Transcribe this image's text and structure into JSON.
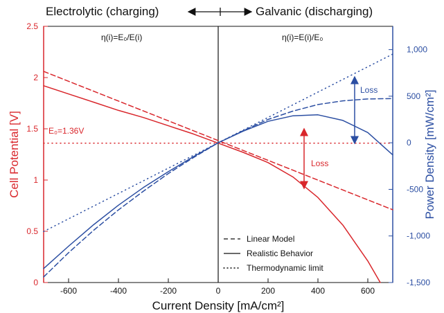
{
  "header": {
    "left_label": "Electrolytic (charging)",
    "right_label": "Galvanic (discharging)"
  },
  "annotations": {
    "eta_left": "η(i)=E₀/E(i)",
    "eta_right": "η(i)=E(i)/E₀",
    "e0_label": "E₀=1.36V",
    "loss_power": "Loss",
    "loss_potential": "Loss"
  },
  "colors": {
    "potential": "#d9262b",
    "power": "#2b4ea2",
    "axis": "#111111"
  },
  "chart_data": {
    "type": "line",
    "xlabel": "Current Density [mA/cm²]",
    "ylabel": "Cell Potential [V]",
    "y2label": "Power Density [mW/cm²]",
    "xlim": [
      -700,
      700
    ],
    "ylim": [
      0,
      2.5
    ],
    "y2lim": [
      -1500,
      1250
    ],
    "xticks": [
      -600,
      -400,
      -200,
      0,
      200,
      400,
      600
    ],
    "yticks": [
      0,
      0.5,
      1,
      1.5,
      2,
      2.5
    ],
    "y2ticks": [
      -1500,
      -1000,
      -500,
      0,
      500,
      1000
    ],
    "xtick_labels": [
      "-600",
      "-400",
      "-200",
      "0",
      "200",
      "400",
      "600"
    ],
    "ytick_labels": [
      "0",
      "0.5",
      "1",
      "1.5",
      "2",
      "2.5"
    ],
    "y2tick_labels": [
      "-1,500",
      "-1,000",
      "-500",
      "0",
      "500",
      "1,000"
    ],
    "legend": {
      "placement": "bottom-right",
      "entries": [
        {
          "label": "Linear Model",
          "style": "dashed"
        },
        {
          "label": "Realistic Behavior",
          "style": "solid"
        },
        {
          "label": "Thermodynamic limit",
          "style": "dotted"
        }
      ]
    },
    "series": [
      {
        "axis": "left",
        "style": "dashed",
        "x": [
          -700,
          700
        ],
        "y": [
          2.06,
          0.71
        ]
      },
      {
        "axis": "left",
        "style": "solid",
        "x": [
          -700,
          -600,
          -500,
          -400,
          -300,
          -200,
          -100,
          0,
          100,
          200,
          300,
          400,
          500,
          600,
          650
        ],
        "y": [
          1.92,
          1.84,
          1.76,
          1.68,
          1.61,
          1.53,
          1.45,
          1.36,
          1.27,
          1.17,
          1.03,
          0.83,
          0.56,
          0.21,
          0.0
        ]
      },
      {
        "axis": "left",
        "style": "dotted",
        "x": [
          -700,
          700
        ],
        "y": [
          1.36,
          1.36
        ]
      },
      {
        "axis": "right",
        "style": "dashed",
        "x": [
          -700,
          -600,
          -500,
          -400,
          -300,
          -200,
          -100,
          0,
          100,
          200,
          300,
          400,
          500,
          600,
          700
        ],
        "y": [
          -1440,
          -1180,
          -940,
          -720,
          -520,
          -330,
          -160,
          0,
          130,
          250,
          340,
          410,
          450,
          470,
          475
        ]
      },
      {
        "axis": "right",
        "style": "solid",
        "x": [
          -700,
          -600,
          -500,
          -400,
          -300,
          -200,
          -100,
          0,
          100,
          200,
          300,
          400,
          500,
          600,
          700
        ],
        "y": [
          -1350,
          -1110,
          -880,
          -670,
          -480,
          -310,
          -150,
          0,
          125,
          230,
          290,
          300,
          240,
          110,
          -130
        ]
      },
      {
        "axis": "right",
        "style": "dotted",
        "x": [
          -700,
          700
        ],
        "y": [
          -952,
          952
        ]
      }
    ]
  }
}
